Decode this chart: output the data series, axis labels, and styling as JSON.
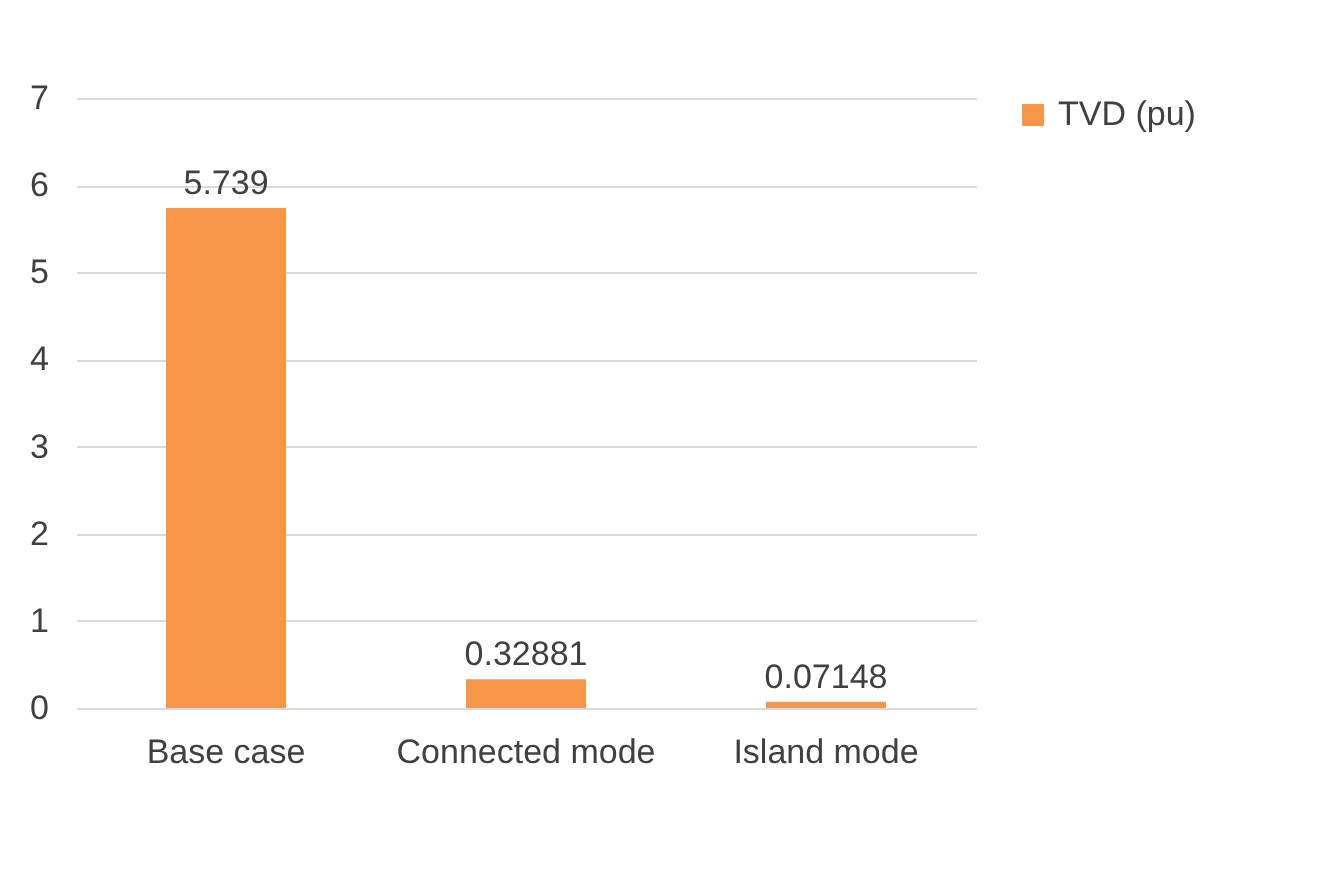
{
  "chart_data": {
    "type": "bar",
    "categories": [
      "Base case",
      "Connected mode",
      "Island mode"
    ],
    "series": [
      {
        "name": "TVD (pu)",
        "color": "#f79646",
        "values": [
          5.739,
          0.32881,
          0.07148
        ]
      }
    ],
    "ylim": [
      0,
      7
    ],
    "yticks": [
      0,
      1,
      2,
      3,
      4,
      5,
      6,
      7
    ],
    "grid": "y",
    "legend": "right",
    "data_labels": true
  }
}
